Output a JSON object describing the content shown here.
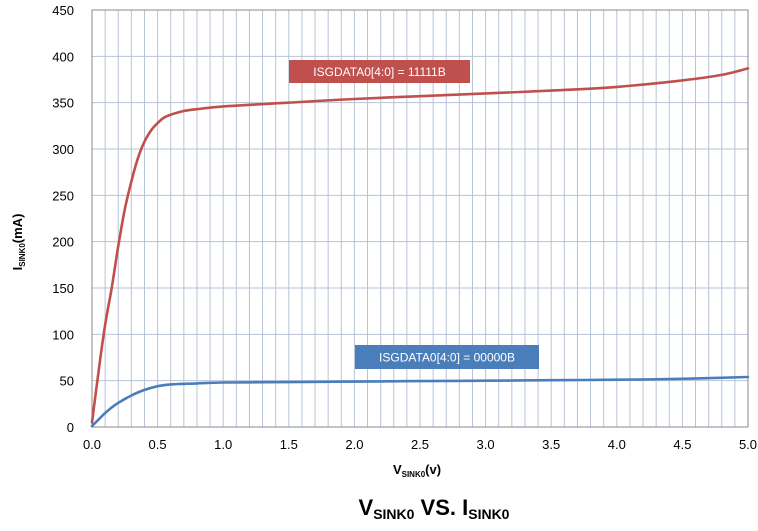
{
  "chart_data": {
    "type": "line",
    "title": {
      "main_a": "V",
      "sub_a": "SINK0",
      "main_b": " VS. I",
      "sub_b": "SINK0"
    },
    "xlabel": {
      "main": "V",
      "sub": "SINK0",
      "unit": "(v)"
    },
    "ylabel": {
      "main": "I",
      "sub": "SINK0",
      "unit": "(mA)"
    },
    "xlim": [
      0,
      5
    ],
    "ylim": [
      0,
      450
    ],
    "x_ticks": [
      "0.0",
      "0.5",
      "1.0",
      "1.5",
      "2.0",
      "2.5",
      "3.0",
      "3.5",
      "4.0",
      "4.5",
      "5.0"
    ],
    "x_tick_values": [
      0,
      0.5,
      1,
      1.5,
      2,
      2.5,
      3,
      3.5,
      4,
      4.5,
      5
    ],
    "y_ticks": [
      "0",
      "50",
      "100",
      "150",
      "200",
      "250",
      "300",
      "350",
      "400",
      "450"
    ],
    "y_tick_values": [
      0,
      50,
      100,
      150,
      200,
      250,
      300,
      350,
      400,
      450
    ],
    "grid": true,
    "series": [
      {
        "name": "ISGDATA0[4:0] = 11111B",
        "color": "#c0504d",
        "x": [
          0,
          0.05,
          0.1,
          0.15,
          0.2,
          0.25,
          0.3,
          0.35,
          0.4,
          0.45,
          0.5,
          0.55,
          0.6,
          0.7,
          0.8,
          1.0,
          1.5,
          2.0,
          2.5,
          3.0,
          3.5,
          4.0,
          4.5,
          4.8,
          5.0
        ],
        "y": [
          5,
          60,
          110,
          150,
          195,
          235,
          265,
          290,
          308,
          320,
          328,
          334,
          337,
          341,
          343,
          346,
          350,
          354,
          357,
          360,
          363,
          367,
          374,
          380,
          387
        ]
      },
      {
        "name": "ISGDATA0[4:0] = 00000B",
        "color": "#4a7ebb",
        "x": [
          0,
          0.05,
          0.1,
          0.15,
          0.2,
          0.3,
          0.4,
          0.5,
          0.6,
          0.8,
          1.0,
          1.5,
          2.0,
          2.5,
          3.0,
          3.5,
          4.0,
          4.5,
          5.0
        ],
        "y": [
          1,
          8,
          15,
          21,
          26,
          34,
          40,
          44,
          46,
          47,
          48,
          48.5,
          49,
          49.5,
          50,
          50.5,
          51,
          52,
          54
        ]
      }
    ],
    "legend_labels": [
      {
        "text": "ISGDATA0[4:0] = 11111B",
        "bg": "#c0504d"
      },
      {
        "text": "ISGDATA0[4:0] = 00000B",
        "bg": "#4a7ebb"
      }
    ]
  }
}
